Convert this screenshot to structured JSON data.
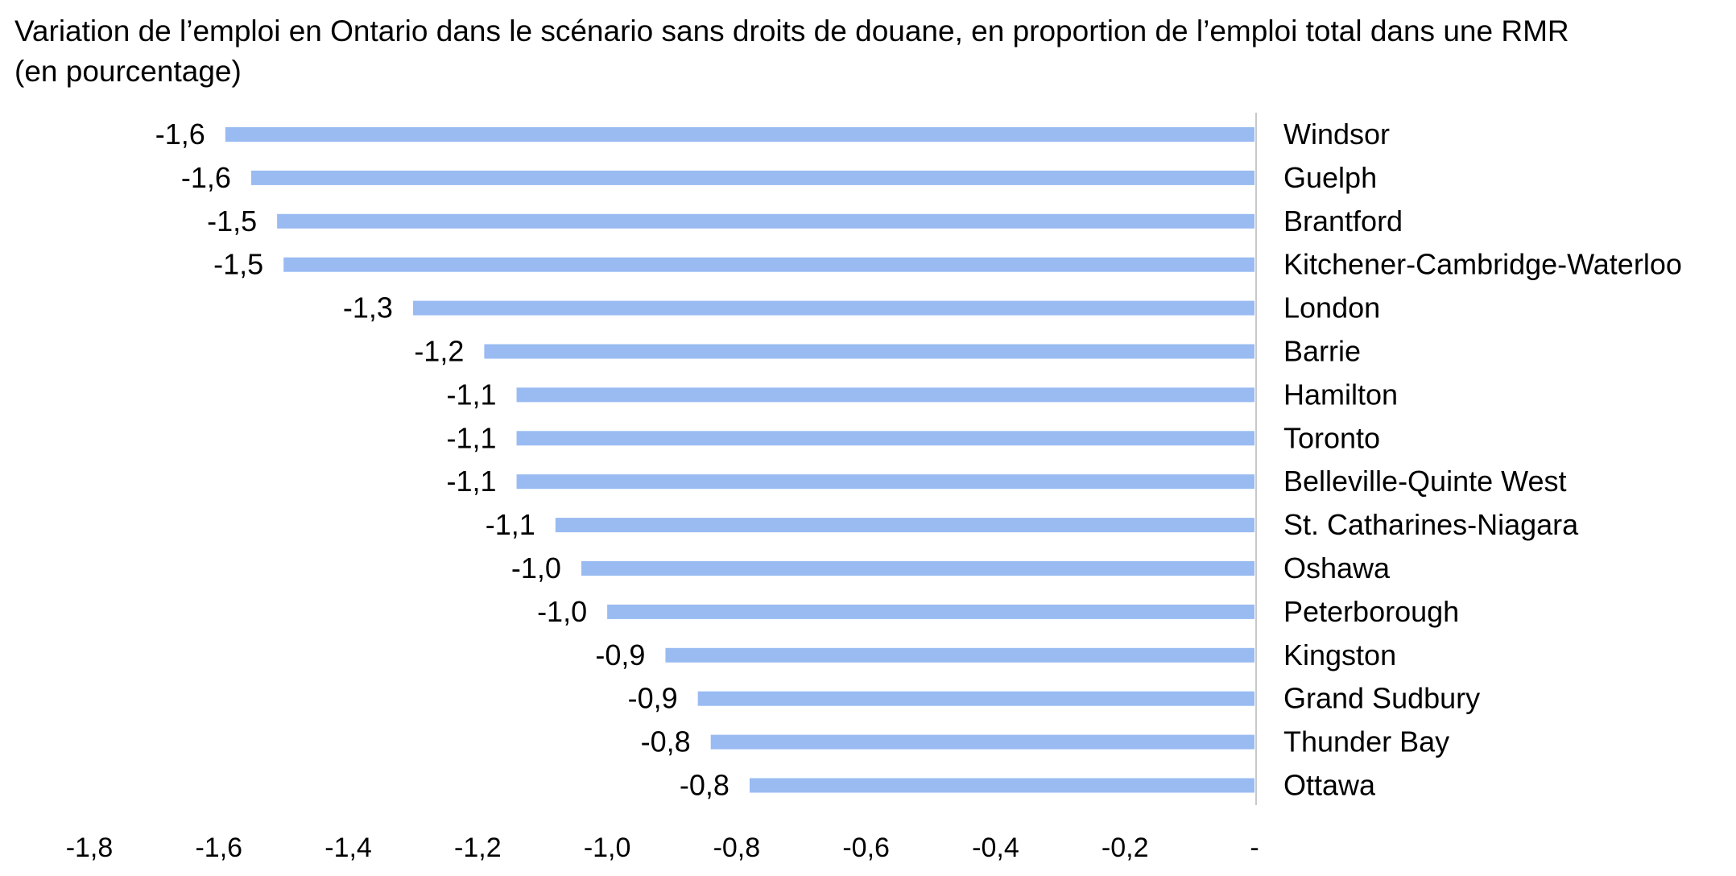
{
  "chart_data": {
    "type": "bar",
    "orientation": "horizontal",
    "title": "Variation de l’emploi en Ontario dans le scénario sans droits de douane, en proportion de l’emploi total dans une RMR",
    "subtitle": "(en pourcentage)",
    "categories": [
      "Windsor",
      "Guelph",
      "Brantford",
      "Kitchener-Cambridge-Waterloo",
      "London",
      "Barrie",
      "Hamilton",
      "Toronto",
      "Belleville-Quinte West",
      "St. Catharines-Niagara",
      "Oshawa",
      "Peterborough",
      "Kingston",
      "Grand Sudbury",
      "Thunder Bay",
      "Ottawa"
    ],
    "values": [
      -1.59,
      -1.55,
      -1.51,
      -1.5,
      -1.3,
      -1.19,
      -1.14,
      -1.14,
      -1.14,
      -1.08,
      -1.04,
      -1.0,
      -0.91,
      -0.86,
      -0.84,
      -0.78
    ],
    "value_labels": [
      "-1,6",
      "-1,6",
      "-1,5",
      "-1,5",
      "-1,3",
      "-1,2",
      "-1,1",
      "-1,1",
      "-1,1",
      "-1,1",
      "-1,0",
      "-1,0",
      "-0,9",
      "-0,9",
      "-0,8",
      "-0,8"
    ],
    "xlim": [
      -1.8,
      0
    ],
    "x_ticks": [
      -1.8,
      -1.6,
      -1.4,
      -1.2,
      -1.0,
      -0.8,
      -0.6,
      -0.4,
      -0.2,
      0
    ],
    "x_tick_labels": [
      "-1,8",
      "-1,6",
      "-1,4",
      "-1,2",
      "-1,0",
      "-0,8",
      "-0,6",
      "-0,4",
      "-0,2",
      "-"
    ],
    "grid": false,
    "legend": "none",
    "bar_color": "#99bbf2",
    "axis_color": "#c8c8c8"
  }
}
